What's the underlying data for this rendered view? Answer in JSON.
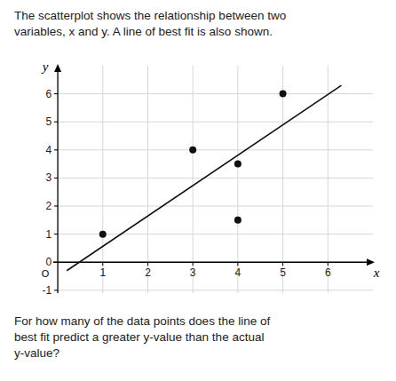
{
  "chart_data": {
    "type": "scatter",
    "title": "The scatterplot shows the relationship between two\nvariables, x and y. A line of best fit is also shown.",
    "footer": "For how many of the data points does the line of\nbest fit predict a greater y-value than the actual\ny-value?",
    "xlabel": "x",
    "ylabel": "y",
    "origin_label": "O",
    "series": [
      {
        "type": "scatter",
        "color": "#111111",
        "x": [
          1,
          3,
          4,
          4,
          5
        ],
        "values": [
          1,
          4,
          1.5,
          3.5,
          6
        ]
      },
      {
        "type": "line",
        "color": "#111111",
        "x": [
          0.2,
          6.3
        ],
        "values": [
          -0.3,
          6.3
        ]
      }
    ],
    "xlim": [
      -0.1,
      7.0
    ],
    "ylim": [
      -1.1,
      7.0
    ],
    "xticks": [
      1,
      2,
      3,
      4,
      5,
      6
    ],
    "yticks": [
      -1,
      0,
      1,
      2,
      3,
      4,
      5,
      6
    ],
    "grid": true
  }
}
